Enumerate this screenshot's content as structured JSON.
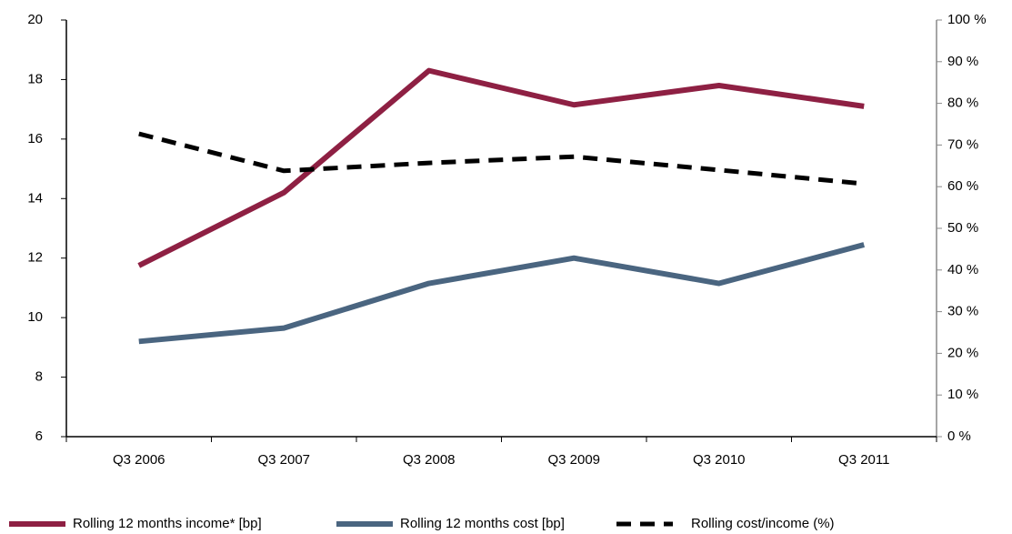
{
  "chart_data": {
    "type": "line",
    "categories": [
      "Q3 2006",
      "Q3 2007",
      "Q3 2008",
      "Q3 2009",
      "Q3 2010",
      "Q3 2011"
    ],
    "series": [
      {
        "name": "Rolling 12 months income* [bp]",
        "color": "#8e2043",
        "values": [
          11.75,
          14.2,
          18.3,
          17.15,
          17.8,
          17.1
        ]
      },
      {
        "name": "Rolling 12 months cost [bp]",
        "color": "#4a6580",
        "values": [
          9.2,
          9.65,
          11.15,
          12.0,
          11.15,
          12.45
        ]
      },
      {
        "name": "Rolling cost/income (%)",
        "color": "#000000",
        "dashed": true,
        "axis": "y2",
        "values": [
          72.7,
          63.8,
          65.7,
          67.2,
          64.0,
          60.7
        ]
      }
    ],
    "ylim": [
      6,
      20
    ],
    "yticks": [
      6,
      8,
      10,
      12,
      14,
      16,
      18,
      20
    ],
    "y2lim": [
      0,
      100
    ],
    "y2ticks": [
      {
        "value": 0,
        "label": "0 %"
      },
      {
        "value": 10,
        "label": "10 %"
      },
      {
        "value": 20,
        "label": "20 %"
      },
      {
        "value": 30,
        "label": "30 %"
      },
      {
        "value": 40,
        "label": "40 %"
      },
      {
        "value": 50,
        "label": "50 %"
      },
      {
        "value": 60,
        "label": "60 %"
      },
      {
        "value": 70,
        "label": "70 %"
      },
      {
        "value": 80,
        "label": "80 %"
      },
      {
        "value": 90,
        "label": "90 %"
      },
      {
        "value": 100,
        "label": "100 %"
      }
    ],
    "grid": false,
    "legend": "bottom"
  }
}
